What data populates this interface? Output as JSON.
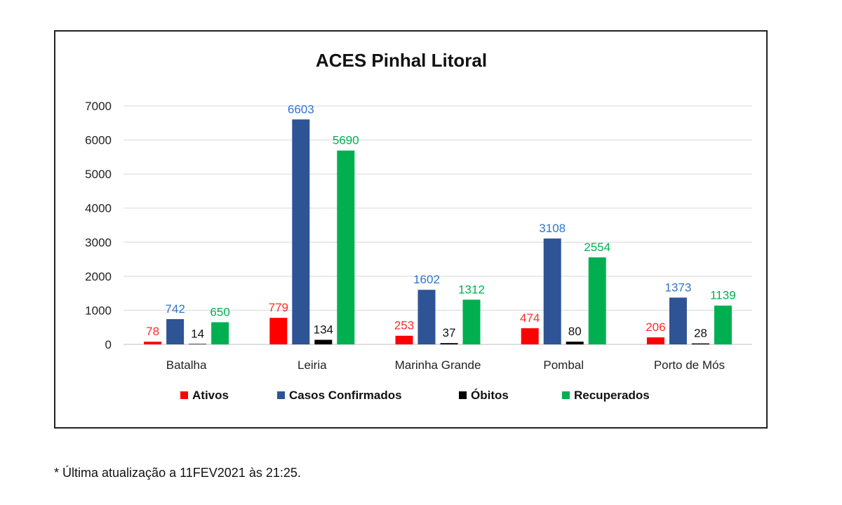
{
  "chart_data": {
    "type": "bar",
    "title": "ACES Pinhal Litoral",
    "categories": [
      "Batalha",
      "Leiria",
      "Marinha Grande",
      "Pombal",
      "Porto de Mós"
    ],
    "series": [
      {
        "name": "Ativos",
        "color": "#ff0000",
        "label_color": "#ff2a2a",
        "values": [
          78,
          779,
          253,
          474,
          206
        ]
      },
      {
        "name": "Casos Confirmados",
        "color": "#2f5496",
        "label_color": "#2e75c9",
        "values": [
          742,
          6603,
          1602,
          3108,
          1373
        ]
      },
      {
        "name": "Óbitos",
        "color": "#000000",
        "label_color": "#111111",
        "values": [
          14,
          134,
          37,
          80,
          28
        ]
      },
      {
        "name": "Recuperados",
        "color": "#00b050",
        "label_color": "#00b050",
        "values": [
          650,
          5690,
          1312,
          2554,
          1139
        ]
      }
    ],
    "yticks": [
      "0",
      "1000",
      "2000",
      "3000",
      "4000",
      "5000",
      "6000",
      "7000"
    ],
    "ylim": [
      0,
      7000
    ],
    "grid": true,
    "legend_position": "bottom"
  },
  "footnote": "* Última atualização a 11FEV2021 às 21:25."
}
